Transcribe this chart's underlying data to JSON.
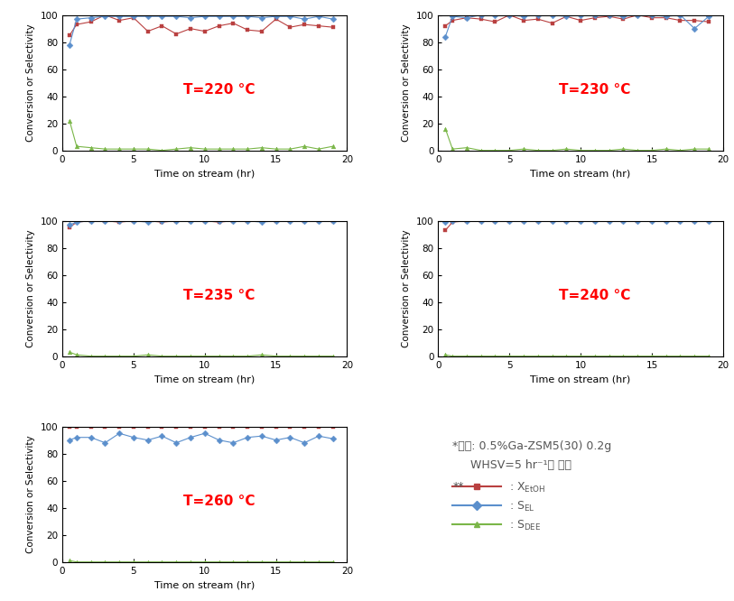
{
  "temperatures": [
    "220",
    "230",
    "235",
    "240",
    "260"
  ],
  "temp_labels": [
    "T=220 °C",
    "T=230 °C",
    "T=235 °C",
    "T=240 °C",
    "T=260 °C"
  ],
  "color_xetoh": "#b94040",
  "color_sel": "#5b8fcc",
  "color_sdee": "#7ab648",
  "xlabel": "Time on stream (hr)",
  "ylabel": "Conversion or Selectivity",
  "xlim": [
    0,
    20
  ],
  "ylim": [
    0,
    100
  ],
  "xticks": [
    0,
    5,
    10,
    15,
    20
  ],
  "yticks": [
    0,
    20,
    40,
    60,
    80,
    100
  ],
  "data_220_xetoh_x": [
    0.5,
    1,
    2,
    3,
    4,
    5,
    6,
    7,
    8,
    9,
    10,
    11,
    12,
    13,
    14,
    15,
    16,
    17,
    18,
    19
  ],
  "data_220_xetoh_y": [
    85,
    93,
    95,
    100,
    96,
    98,
    88,
    92,
    86,
    90,
    88,
    92,
    94,
    89,
    88,
    97,
    91,
    93,
    92,
    91
  ],
  "data_220_sel_x": [
    0.5,
    1,
    2,
    3,
    4,
    5,
    6,
    7,
    8,
    9,
    10,
    11,
    12,
    13,
    14,
    15,
    16,
    17,
    18,
    19
  ],
  "data_220_sel_y": [
    78,
    97,
    98,
    99,
    99,
    99,
    99,
    99,
    99,
    98,
    99,
    99,
    99,
    99,
    98,
    99,
    99,
    97,
    99,
    97
  ],
  "data_220_sdee_x": [
    0.5,
    1,
    2,
    3,
    4,
    5,
    6,
    7,
    8,
    9,
    10,
    11,
    12,
    13,
    14,
    15,
    16,
    17,
    18,
    19
  ],
  "data_220_sdee_y": [
    22,
    3,
    2,
    1,
    1,
    1,
    1,
    0,
    1,
    2,
    1,
    1,
    1,
    1,
    2,
    1,
    1,
    3,
    1,
    3
  ],
  "data_230_xetoh_x": [
    0.5,
    1,
    2,
    3,
    4,
    5,
    6,
    7,
    8,
    9,
    10,
    11,
    12,
    13,
    14,
    15,
    16,
    17,
    18,
    19
  ],
  "data_230_xetoh_y": [
    92,
    96,
    98,
    97,
    95,
    100,
    96,
    97,
    94,
    99,
    96,
    98,
    99,
    97,
    100,
    98,
    98,
    96,
    96,
    95
  ],
  "data_230_sel_x": [
    0.5,
    1,
    2,
    3,
    4,
    5,
    6,
    7,
    8,
    9,
    10,
    11,
    12,
    13,
    14,
    15,
    16,
    17,
    18,
    19
  ],
  "data_230_sel_y": [
    84,
    99,
    98,
    100,
    100,
    100,
    99,
    100,
    100,
    99,
    100,
    100,
    100,
    99,
    100,
    100,
    99,
    100,
    90,
    99
  ],
  "data_230_sdee_x": [
    0.5,
    1,
    2,
    3,
    4,
    5,
    6,
    7,
    8,
    9,
    10,
    11,
    12,
    13,
    14,
    15,
    16,
    17,
    18,
    19
  ],
  "data_230_sdee_y": [
    16,
    1,
    2,
    0,
    0,
    0,
    1,
    0,
    0,
    1,
    0,
    0,
    0,
    1,
    0,
    0,
    1,
    0,
    1,
    1
  ],
  "data_235_xetoh_x": [
    0.5,
    1,
    2,
    3,
    4,
    5,
    6,
    7,
    8,
    9,
    10,
    11,
    12,
    13,
    14,
    15,
    16,
    17,
    18,
    19
  ],
  "data_235_xetoh_y": [
    95,
    99,
    100,
    100,
    99,
    100,
    100,
    99,
    100,
    100,
    100,
    99,
    100,
    100,
    100,
    100,
    100,
    100,
    100,
    100
  ],
  "data_235_sel_x": [
    0.5,
    1,
    2,
    3,
    4,
    5,
    6,
    7,
    8,
    9,
    10,
    11,
    12,
    13,
    14,
    15,
    16,
    17,
    18,
    19
  ],
  "data_235_sel_y": [
    97,
    99,
    100,
    100,
    100,
    100,
    99,
    100,
    100,
    100,
    100,
    100,
    100,
    100,
    99,
    100,
    100,
    100,
    100,
    100
  ],
  "data_235_sdee_x": [
    0.5,
    1,
    2,
    3,
    4,
    5,
    6,
    7,
    8,
    9,
    10,
    11,
    12,
    13,
    14,
    15,
    16,
    17,
    18,
    19
  ],
  "data_235_sdee_y": [
    3,
    1,
    0,
    0,
    0,
    0,
    1,
    0,
    0,
    0,
    0,
    0,
    0,
    0,
    1,
    0,
    0,
    0,
    0,
    0
  ],
  "data_240_xetoh_x": [
    0.5,
    1,
    2,
    3,
    4,
    5,
    6,
    7,
    8,
    9,
    10,
    11,
    12,
    13,
    14,
    15,
    16,
    17,
    18,
    19
  ],
  "data_240_xetoh_y": [
    93,
    99,
    100,
    100,
    100,
    100,
    100,
    100,
    100,
    100,
    100,
    100,
    100,
    100,
    100,
    100,
    100,
    100,
    100,
    100
  ],
  "data_240_sel_x": [
    0.5,
    1,
    2,
    3,
    4,
    5,
    6,
    7,
    8,
    9,
    10,
    11,
    12,
    13,
    14,
    15,
    16,
    17,
    18,
    19
  ],
  "data_240_sel_y": [
    99,
    100,
    100,
    100,
    100,
    100,
    100,
    100,
    100,
    100,
    100,
    100,
    100,
    100,
    100,
    100,
    100,
    100,
    100,
    100
  ],
  "data_240_sdee_x": [
    0.5,
    1,
    2,
    3,
    4,
    5,
    6,
    7,
    8,
    9,
    10,
    11,
    12,
    13,
    14,
    15,
    16,
    17,
    18,
    19
  ],
  "data_240_sdee_y": [
    1,
    0,
    0,
    0,
    0,
    0,
    0,
    0,
    0,
    0,
    0,
    0,
    0,
    0,
    0,
    0,
    0,
    0,
    0,
    0
  ],
  "data_260_xetoh_x": [
    0.5,
    1,
    2,
    3,
    4,
    5,
    6,
    7,
    8,
    9,
    10,
    11,
    12,
    13,
    14,
    15,
    16,
    17,
    18,
    19
  ],
  "data_260_xetoh_y": [
    100,
    100,
    100,
    100,
    100,
    100,
    100,
    100,
    100,
    100,
    100,
    100,
    100,
    100,
    100,
    100,
    100,
    100,
    100,
    100
  ],
  "data_260_sel_x": [
    0.5,
    1,
    2,
    3,
    4,
    5,
    6,
    7,
    8,
    9,
    10,
    11,
    12,
    13,
    14,
    15,
    16,
    17,
    18,
    19
  ],
  "data_260_sel_y": [
    90,
    92,
    92,
    88,
    95,
    92,
    90,
    93,
    88,
    92,
    95,
    90,
    88,
    92,
    93,
    90,
    92,
    88,
    93,
    91
  ],
  "data_260_sdee_x": [
    0.5,
    1,
    2,
    3,
    4,
    5,
    6,
    7,
    8,
    9,
    10,
    11,
    12,
    13,
    14,
    15,
    16,
    17,
    18,
    19
  ],
  "data_260_sdee_y": [
    1,
    0,
    0,
    0,
    0,
    0,
    0,
    0,
    0,
    0,
    0,
    0,
    0,
    0,
    0,
    0,
    0,
    0,
    0,
    0
  ]
}
